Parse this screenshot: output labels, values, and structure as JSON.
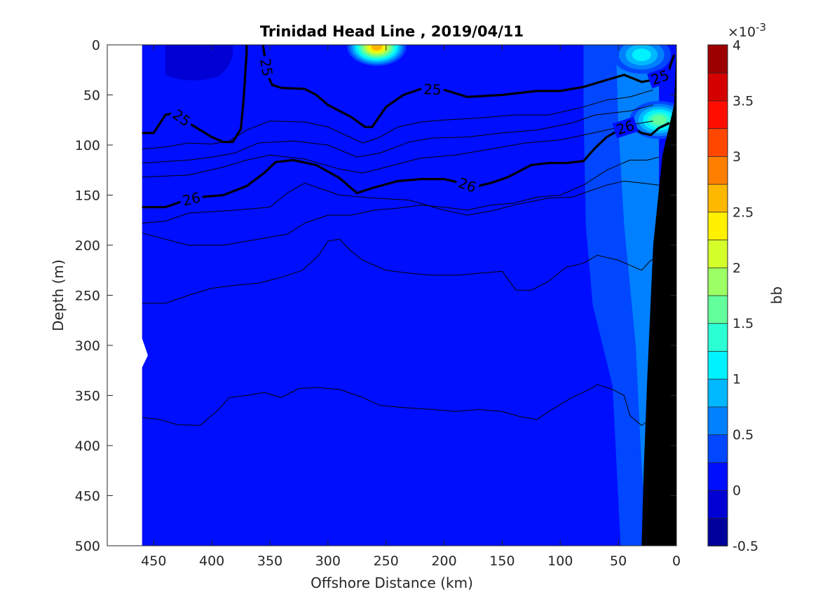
{
  "chart_data": {
    "type": "heatmap",
    "title": "Trinidad Head Line , 2019/04/11",
    "xlabel": "Offshore Distance (km)",
    "ylabel": "Depth (m)",
    "xlim": [
      490,
      0
    ],
    "ylim": [
      500,
      0
    ],
    "x_reversed": true,
    "y_reversed": true,
    "x_ticks": [
      450,
      400,
      350,
      300,
      250,
      200,
      150,
      100,
      50,
      0
    ],
    "y_ticks": [
      0,
      50,
      100,
      150,
      200,
      250,
      300,
      350,
      400,
      450,
      500
    ],
    "x_tick_labels": [
      "450",
      "400",
      "350",
      "300",
      "250",
      "200",
      "150",
      "100",
      "50",
      "0"
    ],
    "y_tick_labels": [
      "0",
      "50",
      "100",
      "150",
      "200",
      "250",
      "300",
      "350",
      "400",
      "450",
      "500"
    ],
    "colorbar": {
      "label": "bb",
      "exponent": "×10",
      "exponent_power": "-3",
      "range": [
        -0.5,
        4
      ],
      "ticks": [
        -0.5,
        0,
        0.5,
        1,
        1.5,
        2,
        2.5,
        3,
        3.5,
        4
      ],
      "tick_labels": [
        "-0.5",
        "0",
        "0.5",
        "1",
        "1.5",
        "2",
        "2.5",
        "3",
        "3.5",
        "4"
      ],
      "levels": 18,
      "colormap": "jet"
    },
    "data_extent_km": [
      0,
      460
    ],
    "background_bb": 0.1,
    "features": [
      {
        "name": "surface maximum",
        "x_km": 258,
        "depth_m": 2,
        "bb": 2.6
      },
      {
        "name": "nearshore maximum",
        "x_km": 15,
        "depth_m": 75,
        "bb": 1.6
      },
      {
        "name": "nearshore surface",
        "x_km": 30,
        "depth_m": 10,
        "bb": 1.2
      }
    ],
    "density_contours": [
      {
        "level": "25",
        "bold": true,
        "points": [
          [
            460,
            88
          ],
          [
            450,
            88
          ],
          [
            440,
            70
          ],
          [
            432,
            68
          ],
          [
            420,
            78
          ],
          [
            400,
            92
          ],
          [
            390,
            97
          ],
          [
            382,
            97
          ],
          [
            375,
            84
          ],
          [
            373,
            60
          ],
          [
            372,
            45
          ],
          [
            371,
            25
          ],
          [
            370,
            8
          ],
          [
            370,
            0
          ]
        ]
      },
      {
        "level": "25",
        "bold": true,
        "points": [
          [
            356,
            0
          ],
          [
            354,
            15
          ],
          [
            352,
            30
          ],
          [
            348,
            40
          ],
          [
            340,
            43
          ],
          [
            320,
            44
          ],
          [
            310,
            50
          ],
          [
            300,
            60
          ],
          [
            280,
            72
          ],
          [
            268,
            82
          ],
          [
            262,
            82
          ],
          [
            250,
            62
          ],
          [
            235,
            50
          ],
          [
            220,
            44
          ],
          [
            200,
            45
          ],
          [
            180,
            52
          ],
          [
            150,
            50
          ],
          [
            120,
            46
          ],
          [
            100,
            46
          ],
          [
            80,
            42
          ],
          [
            60,
            35
          ],
          [
            45,
            30
          ],
          [
            30,
            37
          ],
          [
            20,
            35
          ],
          [
            8,
            30
          ],
          [
            2,
            10
          ]
        ]
      },
      {
        "level": "26",
        "bold": true,
        "points": [
          [
            460,
            162
          ],
          [
            440,
            162
          ],
          [
            425,
            156
          ],
          [
            410,
            152
          ],
          [
            390,
            150
          ],
          [
            370,
            141
          ],
          [
            355,
            128
          ],
          [
            345,
            117
          ],
          [
            330,
            115
          ],
          [
            310,
            120
          ],
          [
            290,
            133
          ],
          [
            280,
            143
          ],
          [
            275,
            148
          ],
          [
            262,
            143
          ],
          [
            240,
            136
          ],
          [
            220,
            134
          ],
          [
            200,
            134
          ],
          [
            185,
            138
          ],
          [
            175,
            142
          ],
          [
            160,
            138
          ],
          [
            145,
            132
          ],
          [
            125,
            120
          ],
          [
            110,
            118
          ],
          [
            95,
            118
          ],
          [
            80,
            116
          ],
          [
            70,
            103
          ],
          [
            60,
            92
          ],
          [
            48,
            84
          ],
          [
            40,
            81
          ],
          [
            30,
            88
          ],
          [
            22,
            90
          ],
          [
            15,
            83
          ],
          [
            6,
            78
          ]
        ]
      },
      {
        "level": "",
        "bold": false,
        "points": [
          [
            460,
            104
          ],
          [
            440,
            102
          ],
          [
            420,
            98
          ],
          [
            400,
            99
          ],
          [
            385,
            96
          ],
          [
            370,
            85
          ],
          [
            350,
            76
          ],
          [
            320,
            77
          ],
          [
            300,
            82
          ],
          [
            270,
            98
          ],
          [
            255,
            92
          ],
          [
            240,
            82
          ],
          [
            220,
            77
          ],
          [
            200,
            75
          ],
          [
            170,
            73
          ],
          [
            140,
            70
          ],
          [
            110,
            70
          ],
          [
            80,
            62
          ],
          [
            60,
            55
          ],
          [
            40,
            52
          ],
          [
            20,
            45
          ]
        ]
      },
      {
        "level": "",
        "bold": false,
        "points": [
          [
            460,
            118
          ],
          [
            420,
            115
          ],
          [
            400,
            112
          ],
          [
            380,
            108
          ],
          [
            360,
            98
          ],
          [
            330,
            96
          ],
          [
            300,
            100
          ],
          [
            275,
            112
          ],
          [
            255,
            108
          ],
          [
            230,
            97
          ],
          [
            210,
            93
          ],
          [
            180,
            92
          ],
          [
            150,
            88
          ],
          [
            120,
            85
          ],
          [
            90,
            78
          ],
          [
            70,
            70
          ],
          [
            40,
            66
          ],
          [
            20,
            60
          ]
        ]
      },
      {
        "level": "",
        "bold": false,
        "points": [
          [
            460,
            132
          ],
          [
            420,
            130
          ],
          [
            390,
            122
          ],
          [
            370,
            115
          ],
          [
            350,
            110
          ],
          [
            320,
            114
          ],
          [
            290,
            124
          ],
          [
            270,
            128
          ],
          [
            250,
            122
          ],
          [
            220,
            113
          ],
          [
            190,
            110
          ],
          [
            160,
            104
          ],
          [
            130,
            98
          ],
          [
            100,
            95
          ],
          [
            80,
            90
          ],
          [
            60,
            85
          ],
          [
            40,
            80
          ],
          [
            20,
            76
          ]
        ]
      },
      {
        "level": "",
        "bold": false,
        "points": [
          [
            460,
            178
          ],
          [
            440,
            176
          ],
          [
            420,
            168
          ],
          [
            380,
            165
          ],
          [
            350,
            162
          ],
          [
            335,
            148
          ],
          [
            320,
            138
          ],
          [
            310,
            142
          ],
          [
            290,
            150
          ],
          [
            260,
            153
          ],
          [
            230,
            155
          ],
          [
            200,
            165
          ],
          [
            180,
            170
          ],
          [
            160,
            166
          ],
          [
            140,
            160
          ],
          [
            110,
            153
          ],
          [
            90,
            152
          ],
          [
            80,
            148
          ],
          [
            60,
            140
          ],
          [
            45,
            136
          ],
          [
            30,
            138
          ],
          [
            15,
            140
          ]
        ]
      },
      {
        "level": "",
        "bold": false,
        "points": [
          [
            460,
            188
          ],
          [
            420,
            200
          ],
          [
            400,
            200
          ],
          [
            390,
            200
          ],
          [
            370,
            196
          ],
          [
            335,
            189
          ],
          [
            320,
            178
          ],
          [
            300,
            170
          ],
          [
            280,
            170
          ],
          [
            260,
            165
          ],
          [
            240,
            163
          ],
          [
            220,
            160
          ],
          [
            200,
            162
          ],
          [
            180,
            165
          ],
          [
            160,
            160
          ],
          [
            140,
            158
          ],
          [
            120,
            152
          ],
          [
            100,
            150
          ],
          [
            80,
            140
          ],
          [
            60,
            125
          ],
          [
            40,
            115
          ],
          [
            25,
            115
          ],
          [
            15,
            112
          ]
        ]
      },
      {
        "level": "",
        "bold": false,
        "points": [
          [
            460,
            258
          ],
          [
            440,
            258
          ],
          [
            420,
            250
          ],
          [
            400,
            243
          ],
          [
            380,
            240
          ],
          [
            360,
            238
          ],
          [
            340,
            232
          ],
          [
            322,
            225
          ],
          [
            308,
            210
          ],
          [
            300,
            196
          ],
          [
            290,
            194
          ],
          [
            280,
            206
          ],
          [
            270,
            215
          ],
          [
            250,
            225
          ],
          [
            230,
            228
          ],
          [
            210,
            230
          ],
          [
            190,
            230
          ],
          [
            170,
            228
          ],
          [
            150,
            226
          ],
          [
            138,
            245
          ],
          [
            125,
            245
          ],
          [
            110,
            236
          ],
          [
            95,
            222
          ],
          [
            80,
            218
          ],
          [
            68,
            210
          ],
          [
            50,
            215
          ],
          [
            40,
            220
          ],
          [
            30,
            225
          ],
          [
            22,
            215
          ],
          [
            12,
            212
          ]
        ]
      },
      {
        "level": "",
        "bold": false,
        "points": [
          [
            460,
            372
          ],
          [
            445,
            374
          ],
          [
            430,
            379
          ],
          [
            410,
            380
          ],
          [
            395,
            365
          ],
          [
            385,
            352
          ],
          [
            370,
            350
          ],
          [
            355,
            347
          ],
          [
            340,
            352
          ],
          [
            325,
            343
          ],
          [
            310,
            342
          ],
          [
            290,
            344
          ],
          [
            270,
            352
          ],
          [
            255,
            360
          ],
          [
            235,
            362
          ],
          [
            210,
            364
          ],
          [
            190,
            366
          ],
          [
            170,
            364
          ],
          [
            150,
            366
          ],
          [
            135,
            371
          ],
          [
            120,
            374
          ],
          [
            110,
            366
          ],
          [
            90,
            352
          ],
          [
            75,
            344
          ],
          [
            68,
            339
          ],
          [
            55,
            344
          ],
          [
            45,
            350
          ],
          [
            40,
            370
          ],
          [
            30,
            380
          ],
          [
            24,
            375
          ]
        ]
      }
    ]
  }
}
